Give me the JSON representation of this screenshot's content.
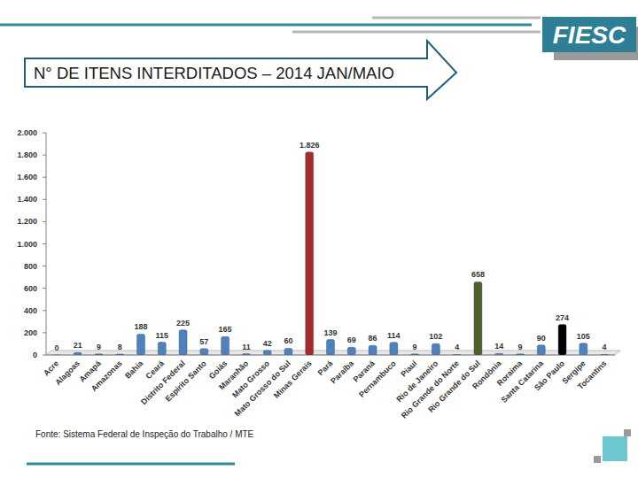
{
  "logo": "FIESC",
  "chart_data": {
    "type": "bar",
    "title": "N° DE ITENS INTERDITADOS – 2014 JAN/MAIO",
    "source": "Fonte: Sistema Federal de Inspeção do Trabalho / MTE",
    "categories": [
      "Acre",
      "Alagoas",
      "Amapá",
      "Amazonas",
      "Bahia",
      "Ceará",
      "Distrito Federal",
      "Espirito Santo",
      "Goiás",
      "Maranhão",
      "Mato Grosso",
      "Mato Grosso do Sul",
      "Minas Gerais",
      "Pará",
      "Paraíba",
      "Paraná",
      "Pernambuco",
      "Piauí",
      "Rio de Janeiro",
      "Rio Grande do Norte",
      "Rio Grande do Sul",
      "Rondônia",
      "Roraima",
      "Santa Catarina",
      "São Paulo",
      "Sergipe",
      "Tocantins"
    ],
    "values": [
      0,
      21,
      9,
      8,
      188,
      115,
      225,
      57,
      165,
      11,
      42,
      60,
      1826,
      139,
      69,
      86,
      114,
      9,
      102,
      4,
      658,
      14,
      9,
      90,
      274,
      105,
      4
    ],
    "value_labels": [
      "0",
      "21",
      "9",
      "8",
      "188",
      "115",
      "225",
      "57",
      "165",
      "11",
      "42",
      "60",
      "1.826",
      "139",
      "69",
      "86",
      "114",
      "9",
      "102",
      "4",
      "658",
      "14",
      "9",
      "90",
      "274",
      "105",
      "4"
    ],
    "colors": [
      "#4f81bd",
      "#4f81bd",
      "#4f81bd",
      "#4f81bd",
      "#4f81bd",
      "#4f81bd",
      "#4f81bd",
      "#4f81bd",
      "#4f81bd",
      "#4f81bd",
      "#4f81bd",
      "#4f81bd",
      "#a52a2a",
      "#4f81bd",
      "#4f81bd",
      "#4f81bd",
      "#4f81bd",
      "#4f81bd",
      "#4f81bd",
      "#4f81bd",
      "#4f6228",
      "#4f81bd",
      "#4f81bd",
      "#4f81bd",
      "#000000",
      "#4f81bd",
      "#4f81bd"
    ],
    "ylim": [
      0,
      2000
    ],
    "yticks": [
      0,
      200,
      400,
      600,
      800,
      {
        "value": 1000,
        "label": "1.000"
      },
      {
        "value": 1200,
        "label": "1.200"
      },
      {
        "value": 1400,
        "label": "1.400"
      },
      {
        "value": 1600,
        "label": "1.600"
      },
      {
        "value": 1800,
        "label": "1.800"
      },
      {
        "value": 2000,
        "label": "2.000"
      }
    ],
    "grid": false,
    "data_labels": true
  }
}
